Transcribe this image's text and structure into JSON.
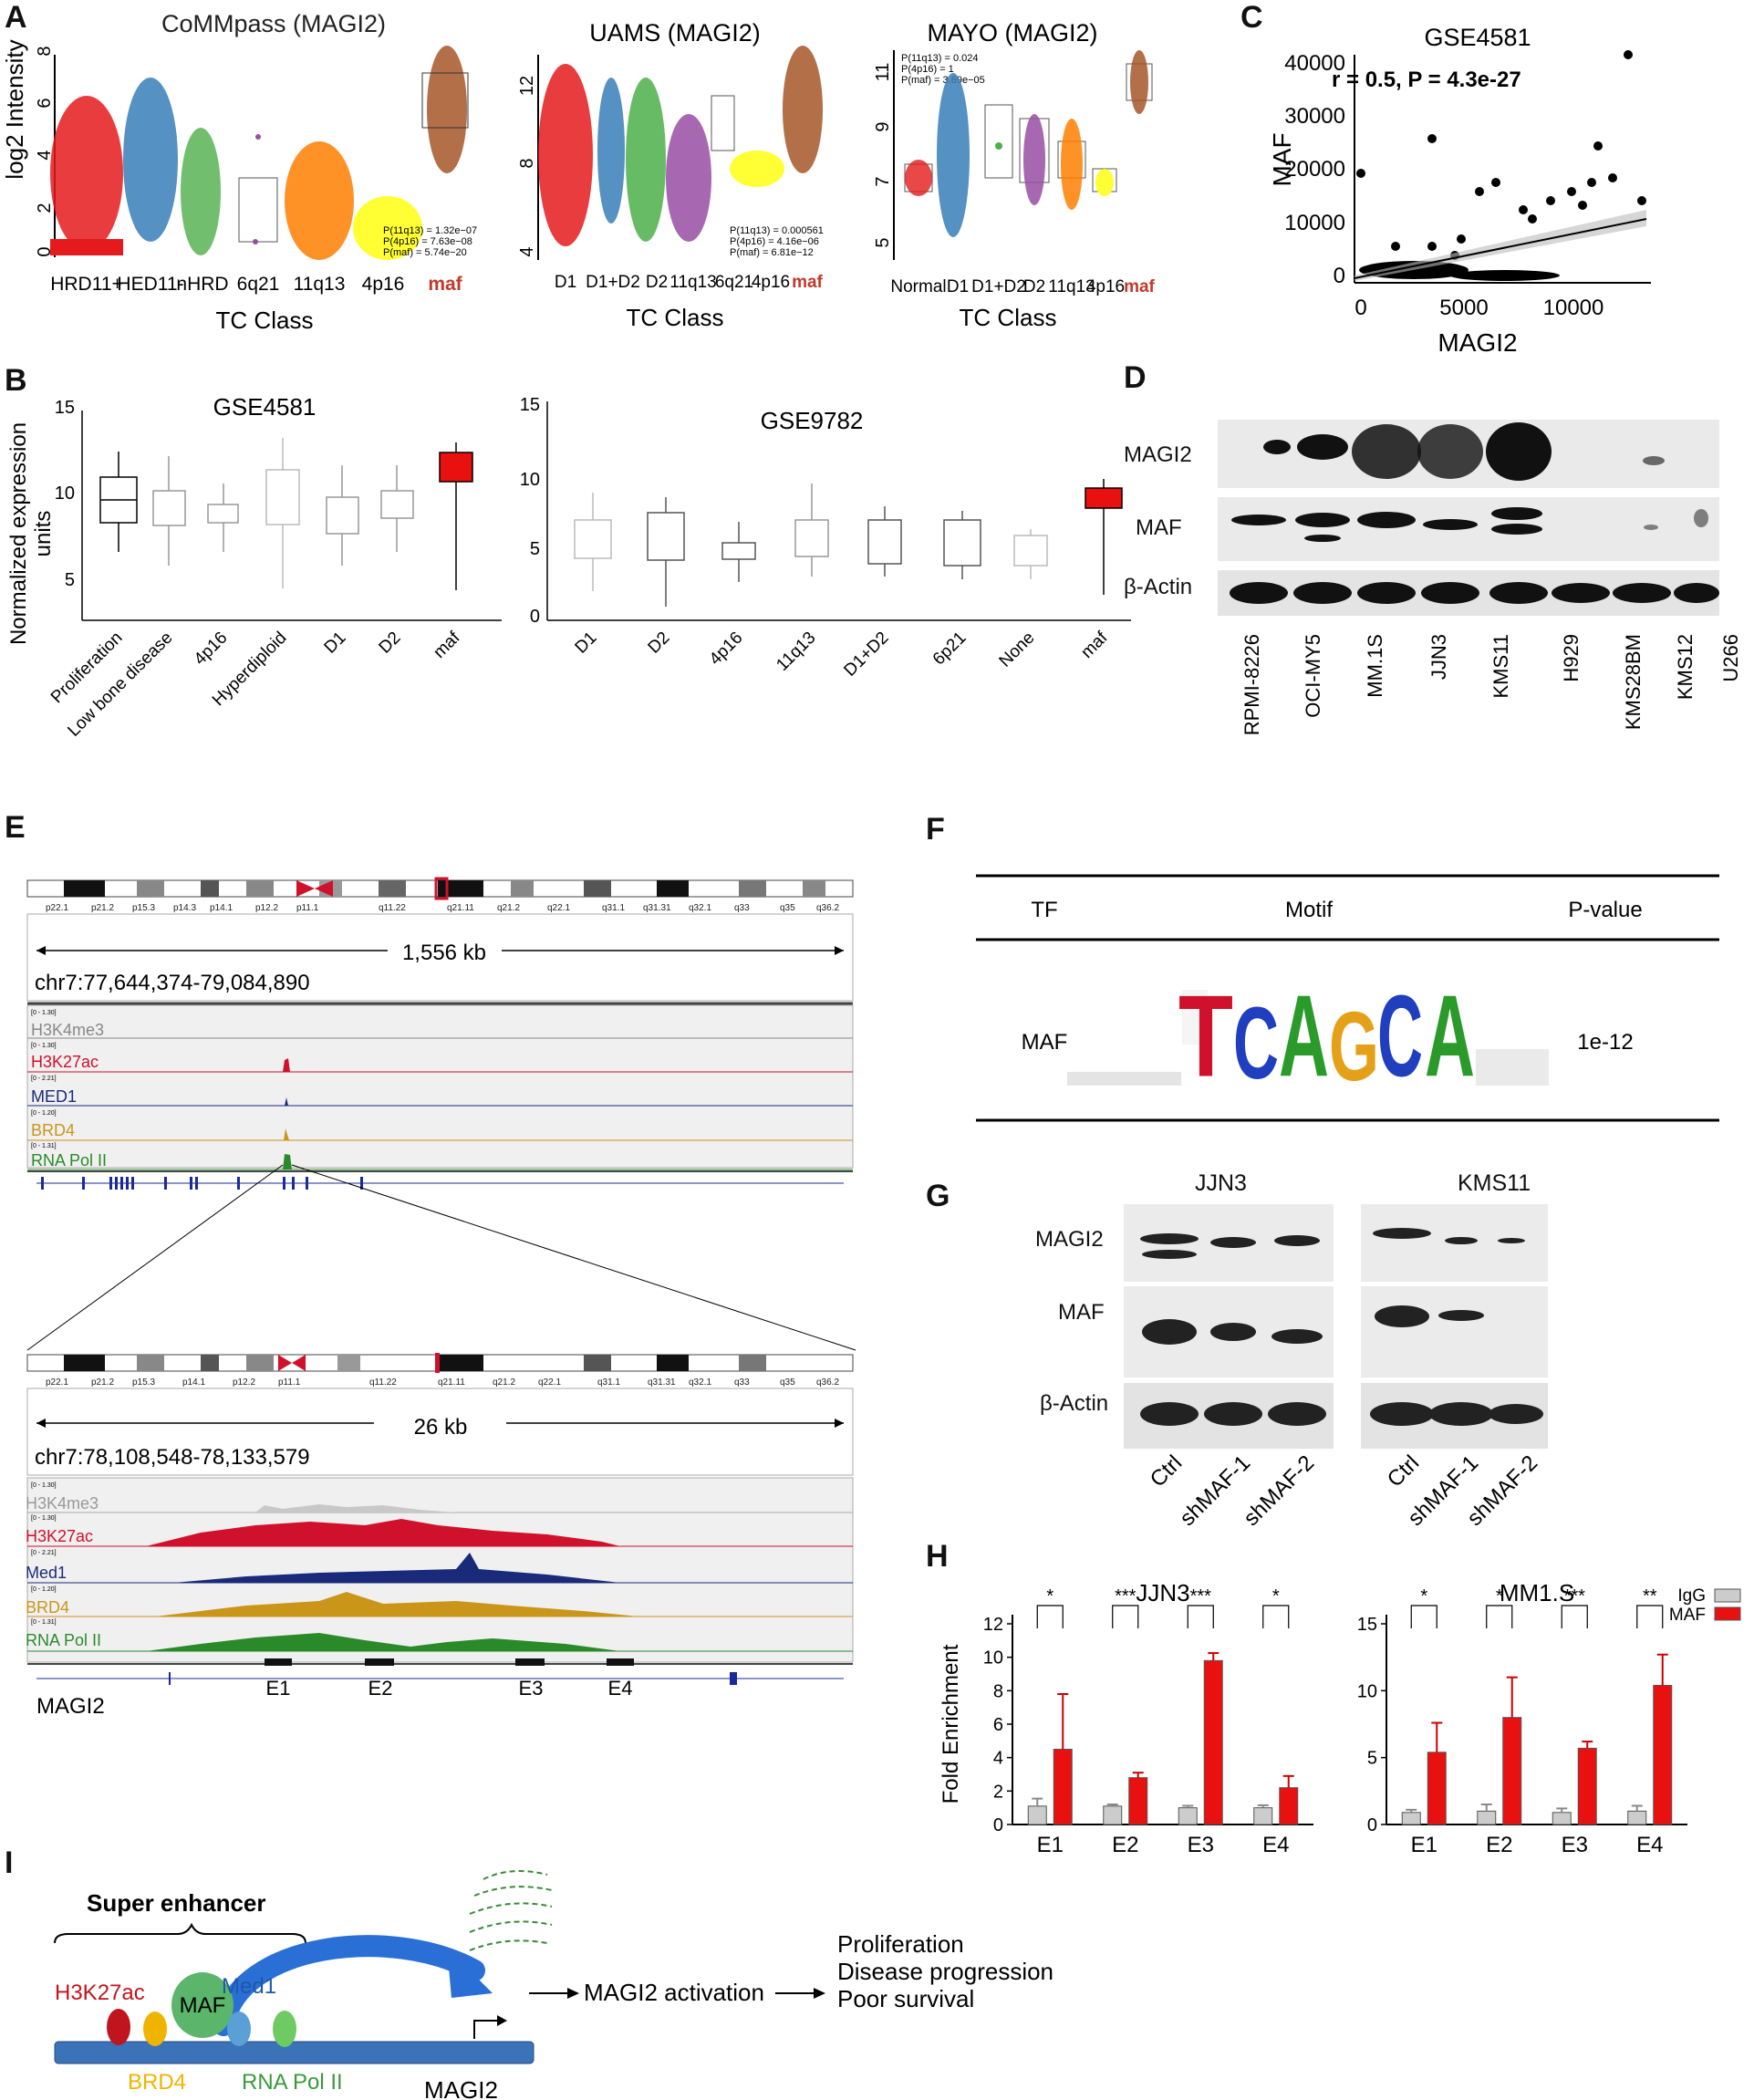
{
  "panels": {
    "A": {
      "label": "A",
      "plots": [
        {
          "title": "CoMMpass (MAGI2)",
          "ylabel": "log2 Intensity",
          "xlabel": "TC Class",
          "categories": [
            "HRD11+",
            "HED11-",
            "nHRD",
            "6q21",
            "11q13",
            "4p16",
            "maf"
          ],
          "yticks": [
            "0",
            "2",
            "4",
            "6",
            "8"
          ],
          "pvalues": [
            "P(11q13) = 1.32e−07",
            "P(4p16) = 7.63e−08",
            "P(maf) = 5.74e−20"
          ]
        },
        {
          "title": "UAMS (MAGI2)",
          "ylabel": "",
          "xlabel": "TC Class",
          "categories": [
            "D1",
            "D1+D2",
            "D2",
            "11q13",
            "6q21",
            "4p16",
            "maf"
          ],
          "yticks": [
            "4",
            "8",
            "12"
          ],
          "pvalues": [
            "P(11q13) = 0.000561",
            "P(4p16) = 4.16e−06",
            "P(maf) = 6.81e−12"
          ]
        },
        {
          "title": "MAYO (MAGI2)",
          "ylabel": "",
          "xlabel": "TC Class",
          "categories": [
            "Normal",
            "D1",
            "D1+D2",
            "D2",
            "11q13",
            "4p16",
            "maf"
          ],
          "yticks": [
            "5",
            "7",
            "9",
            "11"
          ],
          "pvalues": [
            "P(11q13) = 0.024",
            "P(4p16) = 1",
            "P(maf) = 3.69e−05"
          ]
        }
      ]
    },
    "B": {
      "label": "B",
      "ylabel_line1": "Normalized expression",
      "ylabel_line2": "units",
      "plots": [
        {
          "title": "GSE4581",
          "yticks": [
            "5",
            "10",
            "15"
          ],
          "categories": [
            "Proliferation",
            "Low bone disease",
            "4p16",
            "Hyperdiploid",
            "D1",
            "D2",
            "maf"
          ]
        },
        {
          "title": "GSE9782",
          "yticks": [
            "0",
            "5",
            "10",
            "15"
          ],
          "categories": [
            "D1",
            "D2",
            "4p16",
            "11q13",
            "D1+D2",
            "6p21",
            "None",
            "maf"
          ]
        }
      ]
    },
    "C": {
      "label": "C",
      "title": "GSE4581",
      "stat": "r = 0.5, P = 4.3e-27",
      "xlabel": "MAGI2",
      "ylabel": "MAF",
      "xticks": [
        "0",
        "5000",
        "10000"
      ],
      "yticks": [
        "0",
        "10000",
        "20000",
        "30000",
        "40000"
      ]
    },
    "D": {
      "label": "D",
      "rows": [
        "MAGI2",
        "MAF",
        "β-Actin"
      ],
      "lanes": [
        "RPMI-8226",
        "OCI-MY5",
        "MM.1S",
        "JJN3",
        "KMS11",
        "H929",
        "KMS28BM",
        "KMS12",
        "U266"
      ]
    },
    "E": {
      "label": "E",
      "top": {
        "coord": "chr7:77,644,374-79,084,890",
        "span": "1,556 kb",
        "bands": [
          "p22.1",
          "p21.2",
          "p15.3",
          "p14.3",
          "p14.1",
          "p12.2",
          "p11.1",
          "q11.22",
          "q21.11",
          "q21.2",
          "q22.1",
          "q31.1",
          "q31.31",
          "q32.1",
          "q33",
          "q35",
          "q36.2"
        ],
        "tracks": [
          {
            "name": "H3K4me3",
            "range": "[0 - 1.30]",
            "color": "#888888"
          },
          {
            "name": "H3K27ac",
            "range": "[0 - 1.30]",
            "color": "#d0112b"
          },
          {
            "name": "MED1",
            "range": "[0 - 2.21]",
            "color": "#1a2a7a"
          },
          {
            "name": "BRD4",
            "range": "[0 - 1.20]",
            "color": "#c9961a"
          },
          {
            "name": "RNA Pol II",
            "range": "[0 - 1.31]",
            "color": "#2a8a2a"
          }
        ]
      },
      "bottom": {
        "coord": "chr7:78,108,548-78,133,579",
        "span": "26 kb",
        "bands": [
          "p22.1",
          "p21.2",
          "p15.3",
          "p14.1",
          "p12.2",
          "p11.1",
          "q11.22",
          "q21.11",
          "q21.2",
          "q22.1",
          "q31.1",
          "q31.31",
          "q32.1",
          "q33",
          "q35",
          "q36.2"
        ],
        "tracks": [
          {
            "name": "H3K4me3",
            "range": "[0 - 1.30]",
            "color": "#aaaaaa"
          },
          {
            "name": "H3K27ac",
            "range": "[0 - 1.30]",
            "color": "#d0112b"
          },
          {
            "name": "Med1",
            "range": "[0 - 2.21]",
            "color": "#1a2a7a"
          },
          {
            "name": "BRD4",
            "range": "[0 - 1.20]",
            "color": "#c9961a"
          },
          {
            "name": "RNA Pol II",
            "range": "[0 - 1.31]",
            "color": "#2a8a2a"
          }
        ],
        "gene": "MAGI2",
        "enhancers": [
          "E1",
          "E2",
          "E3",
          "E4"
        ]
      }
    },
    "F": {
      "label": "F",
      "headers": [
        "TF",
        "Motif",
        "P-value"
      ],
      "row": {
        "tf": "MAF",
        "pvalue": "1e-12"
      },
      "motif_letters": [
        "T",
        "C",
        "A",
        "G",
        "C",
        "A"
      ]
    },
    "G": {
      "label": "G",
      "groups": [
        {
          "name": "JJN3",
          "lanes": [
            "Ctrl",
            "shMAF-1",
            "shMAF-2"
          ]
        },
        {
          "name": "KMS11",
          "lanes": [
            "Ctrl",
            "shMAF-1",
            "shMAF-2"
          ]
        }
      ],
      "rows": [
        "MAGI2",
        "MAF",
        "β-Actin"
      ]
    },
    "H": {
      "label": "H",
      "legend": [
        "IgG",
        "MAF"
      ]
    },
    "I": {
      "label": "I",
      "super_enhancer": "Super enhancer",
      "factors": {
        "h3k27ac": "H3K27ac",
        "brd4": "BRD4",
        "maf": "MAF",
        "med1": "Med1",
        "rnapol": "RNA Pol II"
      },
      "gene": "MAGI2",
      "activation": "MAGI2 activation",
      "outcomes": [
        "Proliferation",
        "Disease progression",
        "Poor survival"
      ]
    }
  },
  "colors": {
    "red": "#e8110f",
    "grey": "#cccccc",
    "blue": "#1f77b4",
    "green": "#2ca02c"
  },
  "chart_data": [
    {
      "type": "bar",
      "title": "JJN3",
      "ylabel": "Fold Enrichment",
      "categories": [
        "E1",
        "E2",
        "E3",
        "E4"
      ],
      "series": [
        {
          "name": "IgG",
          "values": [
            1.1,
            1.1,
            1.0,
            1.0
          ],
          "errors": [
            0.45,
            0.1,
            0.12,
            0.15
          ]
        },
        {
          "name": "MAF",
          "values": [
            4.5,
            2.8,
            9.8,
            2.2
          ],
          "errors": [
            3.3,
            0.3,
            0.45,
            0.7
          ]
        }
      ],
      "significance": [
        "*",
        "***",
        "***",
        "*"
      ],
      "ylim": [
        0,
        12
      ],
      "yticks": [
        "0",
        "2",
        "4",
        "6",
        "8",
        "10",
        "12"
      ]
    },
    {
      "type": "bar",
      "title": "MM1.S",
      "ylabel": "",
      "categories": [
        "E1",
        "E2",
        "E3",
        "E4"
      ],
      "series": [
        {
          "name": "IgG",
          "values": [
            0.9,
            1.0,
            0.9,
            1.0
          ],
          "errors": [
            0.2,
            0.5,
            0.3,
            0.4
          ]
        },
        {
          "name": "MAF",
          "values": [
            5.4,
            8.0,
            5.7,
            10.4
          ],
          "errors": [
            2.2,
            3.0,
            0.5,
            2.3
          ]
        }
      ],
      "significance": [
        "*",
        "*",
        "***",
        "**"
      ],
      "ylim": [
        0,
        15
      ],
      "yticks": [
        "0",
        "5",
        "10",
        "15"
      ]
    }
  ]
}
